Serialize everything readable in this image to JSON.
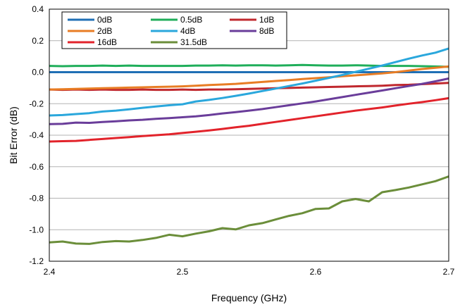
{
  "chart_data": {
    "type": "line",
    "title": "",
    "xlabel": "Frequency (GHz)",
    "ylabel": "Bit Error (dB)",
    "xlim": [
      2.4,
      2.7
    ],
    "ylim": [
      -1.2,
      0.4
    ],
    "xticks": [
      2.4,
      2.5,
      2.6,
      2.7
    ],
    "xtick_labels": [
      "2.4",
      "2.5",
      "2.6",
      "2.7"
    ],
    "yticks": [
      0.4,
      0.2,
      0.0,
      -0.2,
      -0.4,
      -0.6,
      -0.8,
      -1.0,
      -1.2
    ],
    "ytick_labels": [
      "0.4",
      "0.2",
      "0.0",
      "-0.2",
      "-0.4",
      "-0.6",
      "-0.8",
      "-1.0",
      "-1.2"
    ],
    "grid": "horizontal",
    "legend_position": "top-left",
    "x": [
      2.4,
      2.41,
      2.42,
      2.43,
      2.44,
      2.45,
      2.46,
      2.47,
      2.48,
      2.49,
      2.5,
      2.51,
      2.52,
      2.53,
      2.54,
      2.55,
      2.56,
      2.57,
      2.58,
      2.59,
      2.6,
      2.61,
      2.62,
      2.63,
      2.64,
      2.65,
      2.66,
      2.67,
      2.68,
      2.69,
      2.7
    ],
    "series": [
      {
        "name": "0dB",
        "color": "#1f6fb5",
        "values": [
          0,
          0,
          0,
          0,
          0,
          0,
          0,
          0,
          0,
          0,
          0,
          0,
          0,
          0,
          0,
          0,
          0,
          0,
          0,
          0,
          0,
          0,
          0,
          0,
          0,
          0,
          0,
          0,
          0,
          0,
          0
        ]
      },
      {
        "name": "0.5dB",
        "color": "#1fae5a",
        "values": [
          0.04,
          0.038,
          0.04,
          0.04,
          0.042,
          0.04,
          0.042,
          0.04,
          0.04,
          0.04,
          0.04,
          0.042,
          0.042,
          0.044,
          0.042,
          0.044,
          0.044,
          0.042,
          0.044,
          0.046,
          0.044,
          0.042,
          0.042,
          0.044,
          0.042,
          0.04,
          0.04,
          0.04,
          0.038,
          0.036,
          0.034
        ]
      },
      {
        "name": "1dB",
        "color": "#c0282e",
        "values": [
          -0.11,
          -0.112,
          -0.11,
          -0.112,
          -0.11,
          -0.112,
          -0.112,
          -0.11,
          -0.112,
          -0.112,
          -0.11,
          -0.112,
          -0.11,
          -0.11,
          -0.108,
          -0.106,
          -0.104,
          -0.102,
          -0.1,
          -0.098,
          -0.096,
          -0.094,
          -0.092,
          -0.09,
          -0.088,
          -0.086,
          -0.082,
          -0.08,
          -0.076,
          -0.072,
          -0.068
        ]
      },
      {
        "name": "2dB",
        "color": "#e87d25",
        "values": [
          -0.11,
          -0.108,
          -0.106,
          -0.104,
          -0.102,
          -0.1,
          -0.098,
          -0.096,
          -0.094,
          -0.092,
          -0.09,
          -0.086,
          -0.082,
          -0.078,
          -0.074,
          -0.068,
          -0.062,
          -0.056,
          -0.05,
          -0.044,
          -0.038,
          -0.032,
          -0.026,
          -0.02,
          -0.014,
          -0.008,
          0.0,
          0.01,
          0.02,
          0.028,
          0.036
        ]
      },
      {
        "name": "4dB",
        "color": "#2aa7dc",
        "values": [
          -0.275,
          -0.272,
          -0.266,
          -0.26,
          -0.25,
          -0.244,
          -0.236,
          -0.226,
          -0.218,
          -0.21,
          -0.204,
          -0.186,
          -0.176,
          -0.164,
          -0.15,
          -0.136,
          -0.12,
          -0.104,
          -0.088,
          -0.072,
          -0.054,
          -0.036,
          -0.018,
          0.002,
          0.022,
          0.042,
          0.064,
          0.086,
          0.106,
          0.124,
          0.15
        ]
      },
      {
        "name": "8dB",
        "color": "#6a3d9a",
        "values": [
          -0.33,
          -0.328,
          -0.32,
          -0.322,
          -0.316,
          -0.312,
          -0.306,
          -0.302,
          -0.296,
          -0.292,
          -0.286,
          -0.28,
          -0.272,
          -0.262,
          -0.254,
          -0.244,
          -0.234,
          -0.222,
          -0.21,
          -0.198,
          -0.186,
          -0.172,
          -0.158,
          -0.144,
          -0.13,
          -0.116,
          -0.102,
          -0.088,
          -0.074,
          -0.058,
          -0.04
        ]
      },
      {
        "name": "16dB",
        "color": "#e2232b",
        "values": [
          -0.44,
          -0.438,
          -0.436,
          -0.43,
          -0.424,
          -0.418,
          -0.412,
          -0.406,
          -0.4,
          -0.394,
          -0.386,
          -0.378,
          -0.37,
          -0.36,
          -0.35,
          -0.34,
          -0.328,
          -0.316,
          -0.304,
          -0.292,
          -0.28,
          -0.268,
          -0.256,
          -0.244,
          -0.234,
          -0.224,
          -0.212,
          -0.2,
          -0.19,
          -0.178,
          -0.165
        ]
      },
      {
        "name": "31.5dB",
        "color": "#6b8e3a",
        "values": [
          -1.08,
          -1.075,
          -1.088,
          -1.09,
          -1.078,
          -1.072,
          -1.075,
          -1.065,
          -1.052,
          -1.032,
          -1.042,
          -1.025,
          -1.01,
          -0.99,
          -0.998,
          -0.972,
          -0.958,
          -0.935,
          -0.912,
          -0.895,
          -0.868,
          -0.865,
          -0.82,
          -0.805,
          -0.82,
          -0.762,
          -0.748,
          -0.732,
          -0.712,
          -0.692,
          -0.662
        ]
      }
    ]
  }
}
